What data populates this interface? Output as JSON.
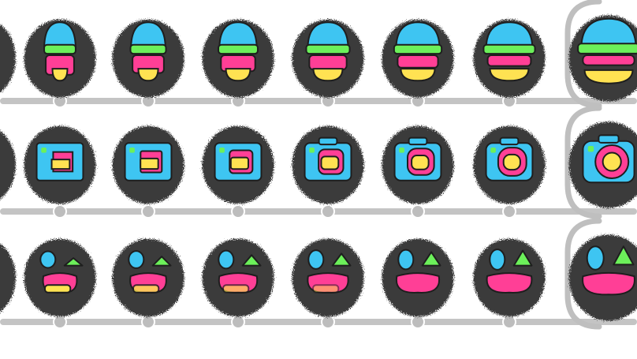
{
  "colors": {
    "background": "#ffffff",
    "blob": "#3a3a3a",
    "rail": "#c4c4c4",
    "dot": "#bdbdbd",
    "frame": "#bfbfbf",
    "blue": "#3ec5f2",
    "pink": "#ff3f96",
    "yellow": "#ffe252",
    "green": "#6cf05a",
    "outline": "#1e1e1e"
  },
  "rows": [
    {
      "name": "burger-row",
      "icon": "burger-icon",
      "frames": [
        {
          "progress": 0.0
        },
        {
          "progress": 0.17
        },
        {
          "progress": 0.33
        },
        {
          "progress": 0.5
        },
        {
          "progress": 0.67
        },
        {
          "progress": 0.83
        },
        {
          "progress": 1.0
        }
      ]
    },
    {
      "name": "camera-row",
      "icon": "camera-icon",
      "frames": [
        {
          "progress": 0.0
        },
        {
          "progress": 0.17
        },
        {
          "progress": 0.33
        },
        {
          "progress": 0.5
        },
        {
          "progress": 0.67
        },
        {
          "progress": 0.83
        },
        {
          "progress": 1.0
        }
      ]
    },
    {
      "name": "landscape-row",
      "icon": "landscape-icon",
      "frames": [
        {
          "progress": 0.0
        },
        {
          "progress": 0.17
        },
        {
          "progress": 0.33
        },
        {
          "progress": 0.5
        },
        {
          "progress": 0.67
        },
        {
          "progress": 0.83
        },
        {
          "progress": 1.0
        }
      ]
    }
  ]
}
